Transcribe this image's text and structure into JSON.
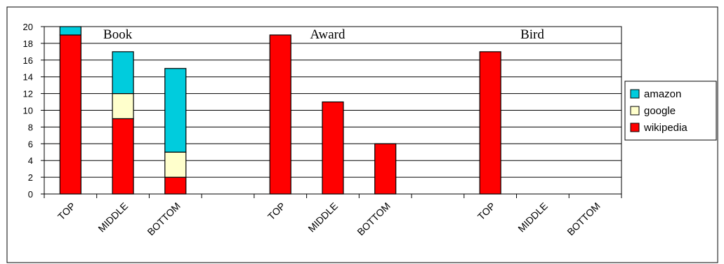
{
  "chart_data": {
    "type": "bar",
    "stacked": true,
    "groups": [
      "Book",
      "Award",
      "Bird"
    ],
    "categories": [
      "TOP",
      "MIDDLE",
      "BOTTOM",
      "TOP",
      "MIDDLE",
      "BOTTOM",
      "TOP",
      "MIDDLE",
      "BOTTOM"
    ],
    "series": [
      {
        "name": "wikipedia",
        "color": "#ff0000",
        "values": [
          19,
          9,
          2,
          19,
          11,
          6,
          17,
          0,
          0
        ]
      },
      {
        "name": "google",
        "color": "#ffffcc",
        "values": [
          0,
          3,
          3,
          0,
          0,
          0,
          0,
          0,
          0
        ]
      },
      {
        "name": "amazon",
        "color": "#00ccdd",
        "values": [
          1,
          5,
          10,
          0,
          0,
          0,
          0,
          0,
          0
        ]
      }
    ],
    "legend_order": [
      "amazon",
      "google",
      "wikipedia"
    ],
    "legend_position": "right",
    "yticks": [
      0,
      2,
      4,
      6,
      8,
      10,
      12,
      14,
      16,
      18,
      20
    ],
    "ylim": [
      0,
      20
    ],
    "grid": true,
    "title": "",
    "xlabel": "",
    "ylabel": ""
  }
}
